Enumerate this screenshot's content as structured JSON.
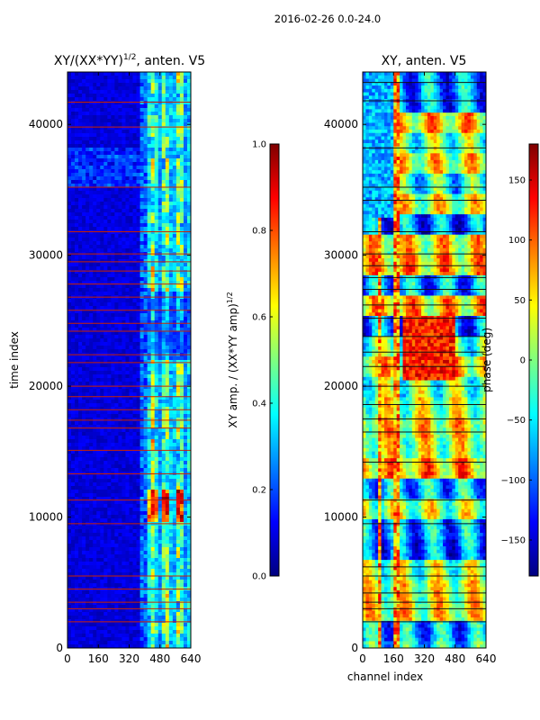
{
  "figure": {
    "suptitle": "2016-02-26 0.0-24.0"
  },
  "colors": {
    "jet": [
      "#00007f",
      "#0000ff",
      "#007fff",
      "#00ffff",
      "#7fff7f",
      "#ffff00",
      "#ff7f00",
      "#ff0000",
      "#7f0000"
    ],
    "flag_line": "#cc2200",
    "phase_line": "#111111"
  },
  "chart_data": [
    {
      "type": "heatmap",
      "title": "XY/(XX*YY)^1/2, anten. V5",
      "title_main": "XY/(XX*YY)",
      "title_exp": "1/2",
      "title_suffix": ", anten. V5",
      "xlabel": "",
      "ylabel": "time index",
      "xlim": [
        0,
        640
      ],
      "ylim": [
        0,
        44000
      ],
      "xticks": [
        0,
        160,
        320,
        480,
        640
      ],
      "yticks": [
        0,
        10000,
        20000,
        30000,
        40000
      ],
      "colorbar": {
        "label": "XY amp. / (XX*YY amp)^1/2",
        "label_main": "XY amp. / (XX*YY amp)",
        "label_exp": "1/2",
        "range": [
          0.0,
          1.0
        ],
        "ticks": [
          "0.0",
          "0.2",
          "0.4",
          "0.6",
          "0.8",
          "1.0"
        ]
      },
      "bright_band_channels": [
        400,
        640
      ],
      "flag_rows": [
        2000,
        3000,
        3500,
        4500,
        5500,
        9500,
        11300,
        13300,
        15100,
        16800,
        17400,
        18200,
        19200,
        20000,
        21800,
        22400,
        24200,
        24800,
        25800,
        26800,
        27800,
        28800,
        29500,
        30100,
        31800,
        35200,
        39800,
        41700
      ]
    },
    {
      "type": "heatmap",
      "title": "XY, anten. V5",
      "xlabel": "channel index",
      "ylabel": "",
      "xlim": [
        0,
        640
      ],
      "ylim": [
        0,
        44000
      ],
      "xticks": [
        0,
        160,
        320,
        480,
        640
      ],
      "yticks": [
        0,
        10000,
        20000,
        30000,
        40000
      ],
      "colorbar": {
        "label": "phase (deg)",
        "range": [
          -180,
          180
        ],
        "ticks": [
          "−150",
          "−100",
          "−50",
          "0",
          "50",
          "100",
          "150"
        ],
        "tick_values": [
          -150,
          -100,
          -50,
          0,
          50,
          100,
          150
        ]
      },
      "phase_rows": [
        2000,
        3000,
        3500,
        4200,
        5500,
        6200,
        9500,
        11300,
        14200,
        16500,
        17500,
        18600,
        20000,
        21500,
        22600,
        23800,
        25200,
        26200,
        27400,
        28300,
        29200,
        30100,
        31800,
        34200,
        35200,
        38200,
        41800,
        43200
      ]
    }
  ]
}
